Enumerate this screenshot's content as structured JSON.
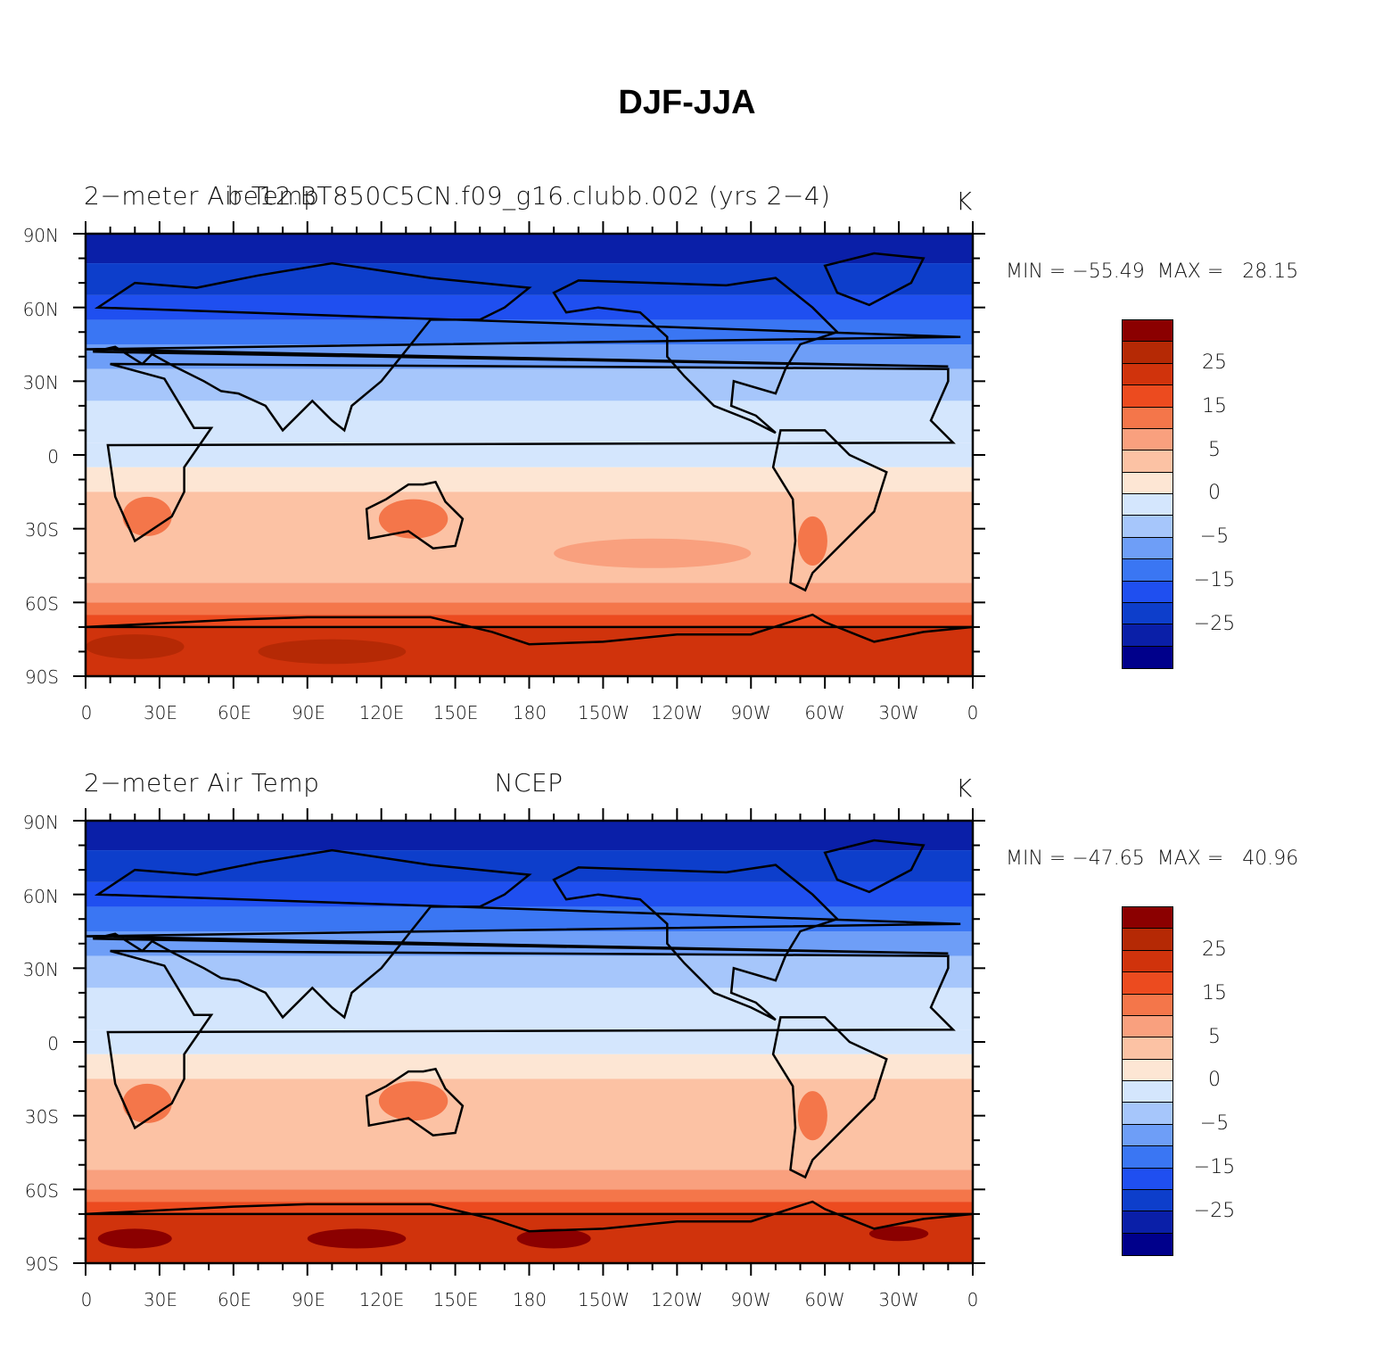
{
  "title": "DJF-JJA",
  "colorbar": {
    "colors": [
      "#00008b",
      "#0a1fa8",
      "#0d3ecb",
      "#1f4ff0",
      "#3a76f3",
      "#6e9ef7",
      "#a6c6fb",
      "#d4e6fd",
      "#fde6d4",
      "#fcc2a4",
      "#f9a07e",
      "#f4764a",
      "#ec4b1f",
      "#d0330c",
      "#b52905",
      "#8b0000"
    ],
    "labels": [
      "25",
      "15",
      "5",
      "0",
      "−5",
      "−15",
      "−25"
    ]
  },
  "lat_labels": [
    "90N",
    "60N",
    "30N",
    "0",
    "30S",
    "60S",
    "90S"
  ],
  "lon_labels": [
    "0",
    "30E",
    "60E",
    "90E",
    "120E",
    "150E",
    "180",
    "150W",
    "120W",
    "90W",
    "60W",
    "30W",
    "0"
  ],
  "panels": [
    {
      "left_label": "2−meter Air Temp",
      "center_label": "be12.BT850C5CN.f09_g16.clubb.002 (yrs 2−4)",
      "units": "K",
      "min_label": "MIN = −55.49",
      "max_label": "MAX =   28.15"
    },
    {
      "left_label": "2−meter Air Temp",
      "center_label": "NCEP",
      "units": "K",
      "min_label": "MIN = −47.65",
      "max_label": "MAX =   40.96"
    }
  ]
}
